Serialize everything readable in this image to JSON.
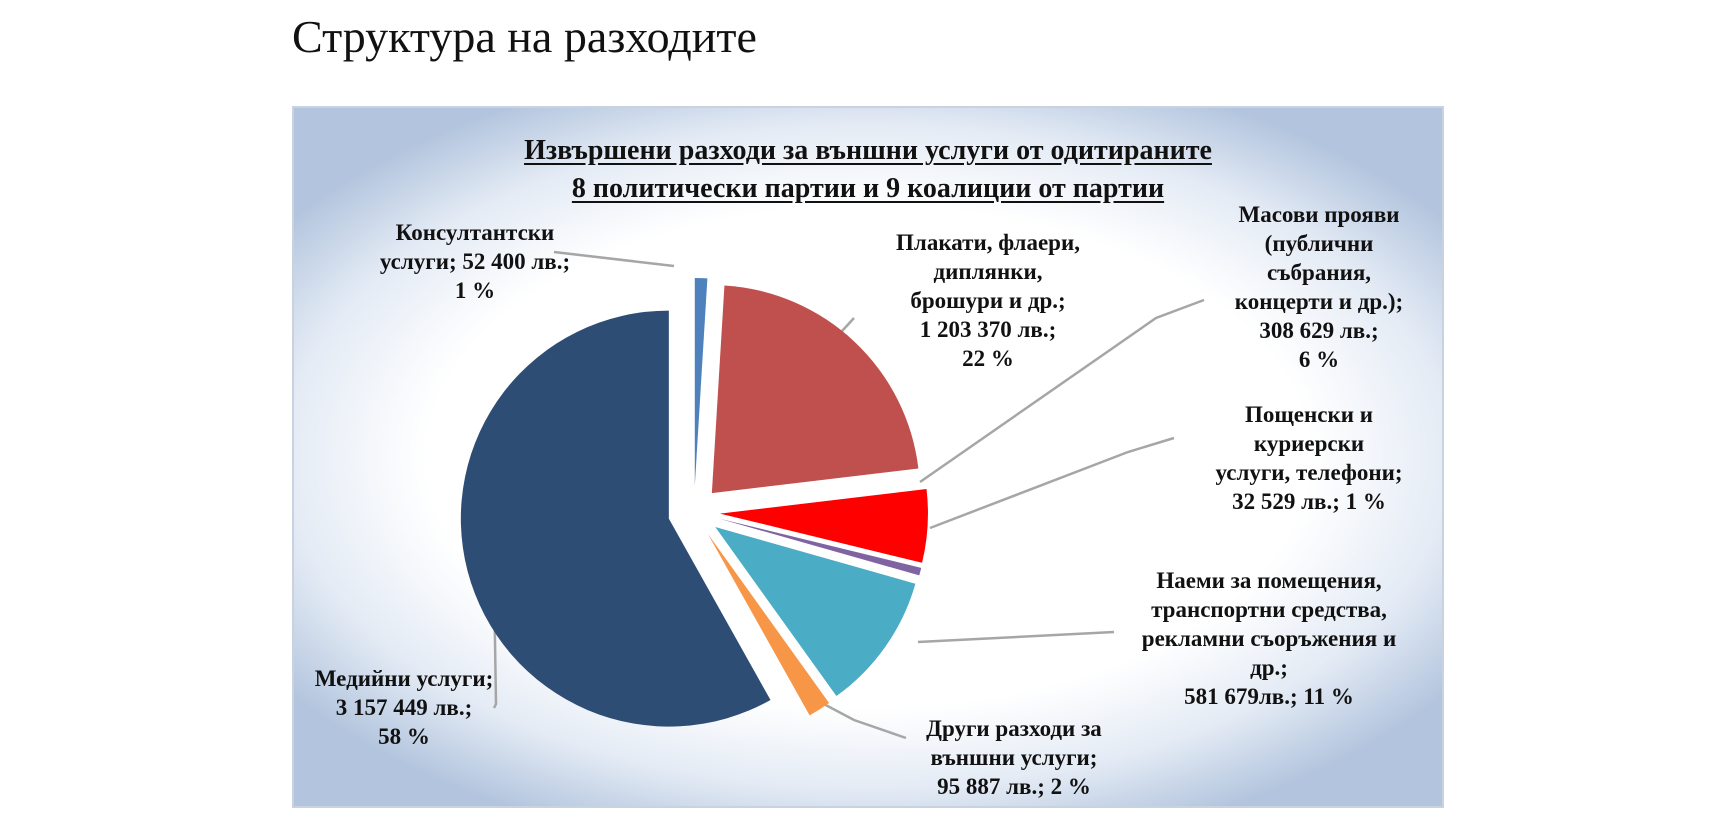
{
  "page": {
    "heading": "Структура на разходите"
  },
  "chart_data": {
    "type": "pie",
    "title_lines": [
      "Извършени разходи за външни услуги от одитираните",
      "8 политически партии и 9 коалиции от партии"
    ],
    "slices": [
      {
        "name": "Консултантски услуги",
        "value": 52400,
        "percent": 1,
        "color": "#4f81bd",
        "label_lines": [
          "Консултантски",
          "услуги; 52 400 лв.;",
          "1 %"
        ]
      },
      {
        "name": "Плакати, флаери, диплянки, брошури и др.",
        "value": 1203370,
        "percent": 22,
        "color": "#c0504d",
        "label_lines": [
          "Плакати, флаери,",
          "диплянки,",
          "брошури и др.;",
          "1 203 370 лв.;",
          "22 %"
        ]
      },
      {
        "name": "Масови прояви (публични събрания, концерти и др.)",
        "value": 308629,
        "percent": 6,
        "color": "#ff0000",
        "label_lines": [
          "Масови прояви",
          "(публични",
          "събрания,",
          "концерти и др.);",
          "308 629 лв.;",
          "6 %"
        ]
      },
      {
        "name": "Пощенски и куриерски услуги, телефони",
        "value": 32529,
        "percent": 1,
        "color": "#8064a2",
        "label_lines": [
          "Пощенски и",
          "куриерски",
          "услуги, телефони;",
          "32 529 лв.; 1 %"
        ]
      },
      {
        "name": "Наеми за помещения, транспортни средства, рекламни съоръжения и др.",
        "value": 581679,
        "percent": 11,
        "color": "#4bacc6",
        "label_lines": [
          "Наеми за помещения,",
          "транспортни средства,",
          "рекламни съоръжения и",
          "др.;",
          "581 679лв.; 11 %"
        ]
      },
      {
        "name": "Други разходи за външни услуги",
        "value": 95887,
        "percent": 2,
        "color": "#f79646",
        "label_lines": [
          "Други разходи за",
          "външни услуги;",
          "95 887 лв.; 2 %"
        ]
      },
      {
        "name": "Медийни услуги",
        "value": 3157449,
        "percent": 58,
        "color": "#2e4d74",
        "label_lines": [
          "Медийни услуги;",
          "3 157 449 лв.;",
          "58 %"
        ]
      }
    ],
    "leader_line_color": "#a6a6a6"
  }
}
